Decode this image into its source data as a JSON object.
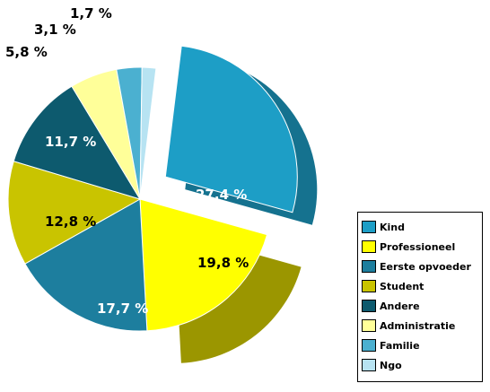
{
  "chart_data": {
    "type": "pie",
    "title": "",
    "style": "3d-exploded",
    "slices": [
      {
        "label": "Kind",
        "value": 27.4,
        "display": "27,4 %",
        "color": "#1d9ec6"
      },
      {
        "label": "Professioneel",
        "value": 19.8,
        "display": "19,8 %",
        "color": "#ffff00"
      },
      {
        "label": "Eerste opvoeder",
        "value": 17.7,
        "display": "17,7 %",
        "color": "#1d7e9e"
      },
      {
        "label": "Student",
        "value": 12.8,
        "display": "12,8 %",
        "color": "#c9c400"
      },
      {
        "label": "Andere",
        "value": 11.7,
        "display": "11,7 %",
        "color": "#0d5a6e"
      },
      {
        "label": "Administratie",
        "value": 5.8,
        "display": "5,8 %",
        "color": "#ffff99"
      },
      {
        "label": "Familie",
        "value": 3.1,
        "display": "3,1 %",
        "color": "#4bb0d0"
      },
      {
        "label": "Ngo",
        "value": 1.7,
        "display": "1,7 %",
        "color": "#b7e3f2"
      }
    ],
    "legend_position": "bottom-right"
  }
}
